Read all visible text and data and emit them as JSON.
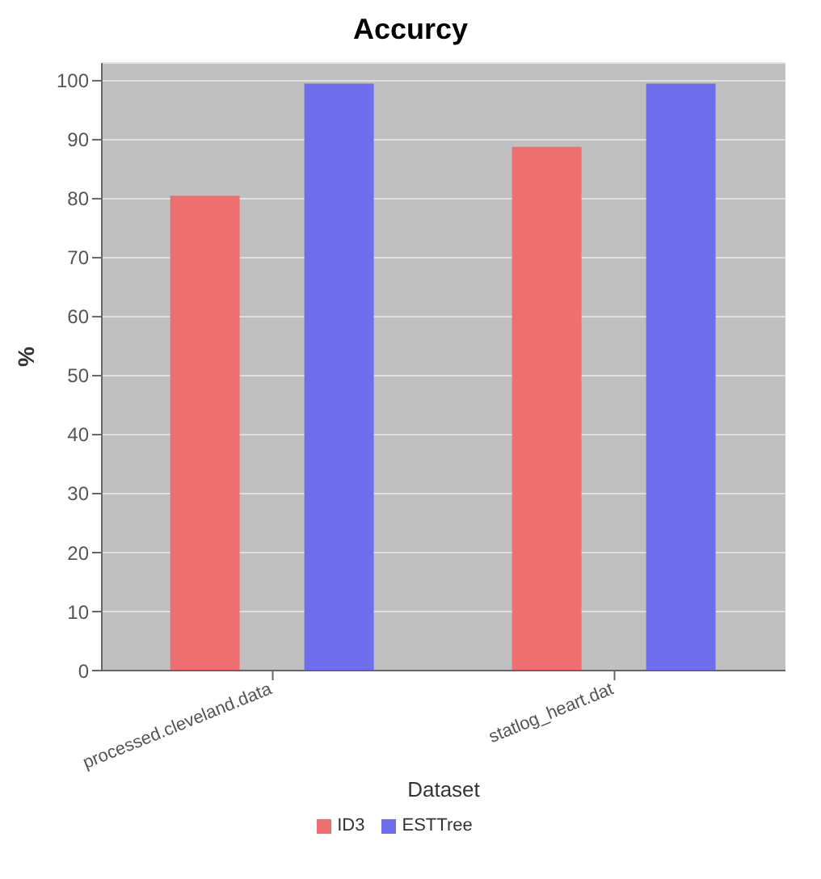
{
  "chart_data": {
    "type": "bar",
    "title": "Accurcy",
    "xlabel": "Dataset",
    "ylabel": "%",
    "categories": [
      "processed.cleveland.data",
      "statlog_heart.dat"
    ],
    "series": [
      {
        "name": "ID3",
        "color": "#ee6f6f",
        "values": [
          80.5,
          88.8
        ]
      },
      {
        "name": "ESTTree",
        "color": "#6f6fee",
        "values": [
          99.5,
          99.5
        ]
      }
    ],
    "ylim": [
      0,
      103
    ],
    "yticks": [
      0,
      10,
      20,
      30,
      40,
      50,
      60,
      70,
      80,
      90,
      100
    ],
    "grid": "y",
    "legend": "bottom"
  }
}
